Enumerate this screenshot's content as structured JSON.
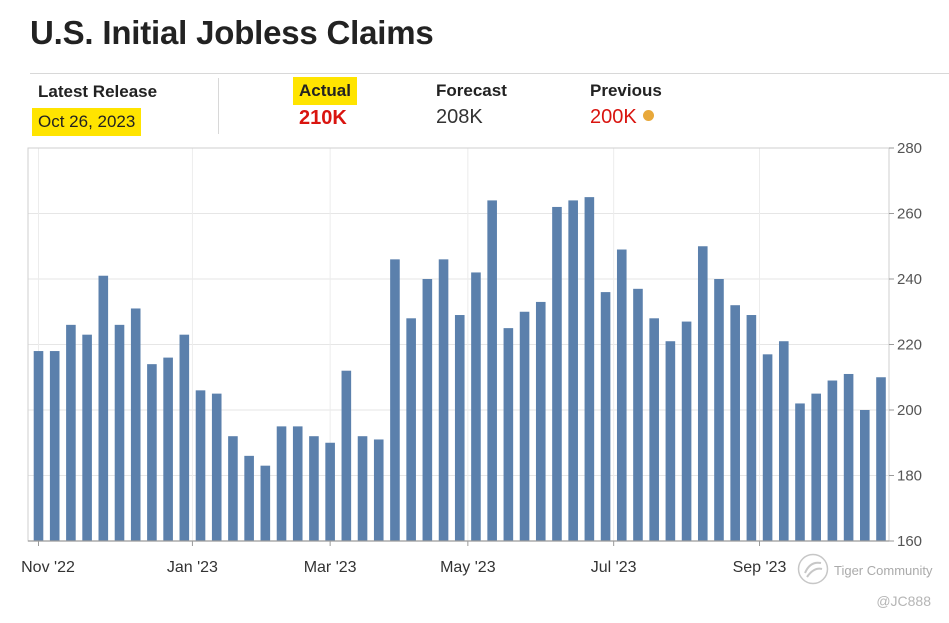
{
  "title": "U.S. Initial Jobless Claims",
  "stats": {
    "latest": {
      "label": "Latest Release",
      "value": "Oct 26, 2023"
    },
    "actual": {
      "label": "Actual",
      "value": "210K"
    },
    "forecast": {
      "label": "Forecast",
      "value": "208K"
    },
    "previous": {
      "label": "Previous",
      "value": "200K"
    }
  },
  "colors": {
    "bar": "#5b80ac",
    "actual": "#d9140f",
    "highlight": "#ffe400",
    "previous_dot": "#e8a83a"
  },
  "watermark": {
    "brand": "Tiger Community",
    "handle": "@JC888",
    "icon": "tiger-community-logo-icon"
  },
  "chart_data": {
    "type": "bar",
    "title": "",
    "xlabel": "",
    "ylabel": "",
    "ylim": [
      160,
      280
    ],
    "yticks": [
      160,
      180,
      200,
      220,
      240,
      260,
      280
    ],
    "y_axis_side": "right",
    "grid": true,
    "x_tick_labels": [
      {
        "label": "Nov '22",
        "index": 0
      },
      {
        "label": "Jan '23",
        "index": 9.5
      },
      {
        "label": "Mar '23",
        "index": 18
      },
      {
        "label": "May '23",
        "index": 26.5
      },
      {
        "label": "Jul '23",
        "index": 35.5
      },
      {
        "label": "Sep '23",
        "index": 44.5
      }
    ],
    "values": [
      218,
      218,
      226,
      223,
      241,
      226,
      231,
      214,
      216,
      223,
      206,
      205,
      192,
      186,
      183,
      195,
      195,
      192,
      190,
      212,
      192,
      191,
      246,
      228,
      240,
      246,
      229,
      242,
      264,
      225,
      230,
      233,
      262,
      264,
      265,
      236,
      249,
      237,
      228,
      221,
      227,
      250,
      240,
      232,
      229,
      217,
      221,
      202,
      205,
      209,
      211,
      200,
      210
    ]
  }
}
